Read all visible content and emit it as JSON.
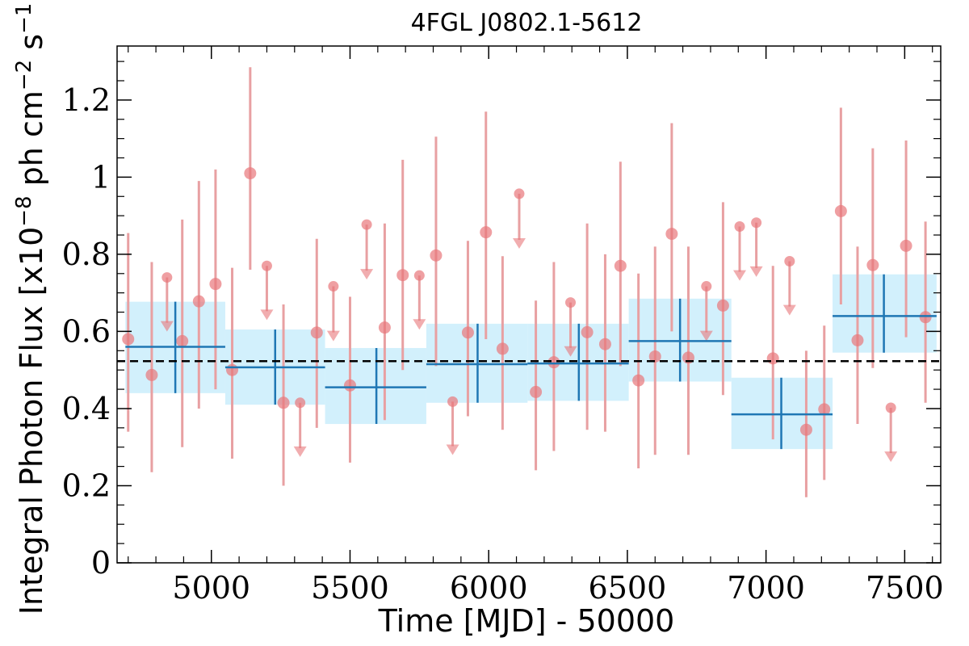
{
  "chart_data": {
    "type": "scatter",
    "title": "4FGL J0802.1-5612",
    "xlabel": "Time [MJD] - 50000",
    "ylabel_main": "Integral Photon Flux [x10",
    "ylabel_exp1": "−8",
    "ylabel_mid": " ph cm",
    "ylabel_exp2": "−2",
    "ylabel_s": " s",
    "ylabel_exp3": "−1",
    "ylabel_end": "]",
    "xlim": [
      4660,
      7630
    ],
    "ylim": [
      0,
      1.34
    ],
    "x_ticks": [
      5000,
      5500,
      6000,
      6500,
      7000,
      7500
    ],
    "y_ticks": [
      0,
      0.2,
      0.4,
      0.6,
      0.8,
      1,
      1.2
    ],
    "y_tick_labels": [
      "0",
      "0.2",
      "0.4",
      "0.6",
      "0.8",
      "1",
      "1.2"
    ],
    "mean_flux": 0.523,
    "colors": {
      "points": "#e8767a",
      "errorbars": "#e8a0a2",
      "bins": "#1f77b4",
      "bin_band": "#cdeefc",
      "mean_line": "#000000"
    },
    "series": [
      {
        "kind": "detections",
        "points": [
          {
            "x": 4700,
            "y": 0.58,
            "ylow": 0.34,
            "yhigh": 0.855
          },
          {
            "x": 4785,
            "y": 0.487,
            "ylow": 0.235,
            "yhigh": 0.78
          },
          {
            "x": 4895,
            "y": 0.575,
            "ylow": 0.3,
            "yhigh": 0.89
          },
          {
            "x": 4955,
            "y": 0.678,
            "ylow": 0.4,
            "yhigh": 0.99
          },
          {
            "x": 5015,
            "y": 0.723,
            "ylow": 0.45,
            "yhigh": 1.02
          },
          {
            "x": 5140,
            "y": 1.01,
            "ylow": 0.76,
            "yhigh": 1.285
          },
          {
            "x": 5075,
            "y": 0.5,
            "ylow": 0.27,
            "yhigh": 0.765
          },
          {
            "x": 5260,
            "y": 0.415,
            "ylow": 0.2,
            "yhigh": 0.67
          },
          {
            "x": 5380,
            "y": 0.597,
            "ylow": 0.35,
            "yhigh": 0.84
          },
          {
            "x": 5500,
            "y": 0.46,
            "ylow": 0.26,
            "yhigh": 0.69
          },
          {
            "x": 5625,
            "y": 0.61,
            "ylow": 0.37,
            "yhigh": 0.88
          },
          {
            "x": 5690,
            "y": 0.746,
            "ylow": 0.5,
            "yhigh": 1.045
          },
          {
            "x": 5810,
            "y": 0.797,
            "ylow": 0.51,
            "yhigh": 1.105
          },
          {
            "x": 5925,
            "y": 0.597,
            "ylow": 0.38,
            "yhigh": 0.835
          },
          {
            "x": 5990,
            "y": 0.857,
            "ylow": 0.58,
            "yhigh": 1.17
          },
          {
            "x": 6050,
            "y": 0.555,
            "ylow": 0.345,
            "yhigh": 0.795
          },
          {
            "x": 6170,
            "y": 0.443,
            "ylow": 0.24,
            "yhigh": 0.68
          },
          {
            "x": 6235,
            "y": 0.52,
            "ylow": 0.29,
            "yhigh": 0.78
          },
          {
            "x": 6355,
            "y": 0.598,
            "ylow": 0.345,
            "yhigh": 0.88
          },
          {
            "x": 6420,
            "y": 0.567,
            "ylow": 0.34,
            "yhigh": 0.8
          },
          {
            "x": 6475,
            "y": 0.77,
            "ylow": 0.51,
            "yhigh": 1.04
          },
          {
            "x": 6540,
            "y": 0.473,
            "ylow": 0.245,
            "yhigh": 0.75
          },
          {
            "x": 6600,
            "y": 0.535,
            "ylow": 0.28,
            "yhigh": 0.82
          },
          {
            "x": 6660,
            "y": 0.853,
            "ylow": 0.6,
            "yhigh": 1.14
          },
          {
            "x": 6720,
            "y": 0.532,
            "ylow": 0.28,
            "yhigh": 0.82
          },
          {
            "x": 6845,
            "y": 0.667,
            "ylow": 0.435,
            "yhigh": 0.935
          },
          {
            "x": 7025,
            "y": 0.53,
            "ylow": 0.32,
            "yhigh": 0.77
          },
          {
            "x": 7145,
            "y": 0.345,
            "ylow": 0.17,
            "yhigh": 0.55
          },
          {
            "x": 7210,
            "y": 0.398,
            "ylow": 0.215,
            "yhigh": 0.615
          },
          {
            "x": 7270,
            "y": 0.912,
            "ylow": 0.67,
            "yhigh": 1.18
          },
          {
            "x": 7330,
            "y": 0.577,
            "ylow": 0.36,
            "yhigh": 0.82
          },
          {
            "x": 7385,
            "y": 0.772,
            "ylow": 0.505,
            "yhigh": 1.075
          },
          {
            "x": 7505,
            "y": 0.822,
            "ylow": 0.585,
            "yhigh": 1.095
          },
          {
            "x": 7575,
            "y": 0.637,
            "ylow": 0.415,
            "yhigh": 0.885
          }
        ]
      },
      {
        "kind": "upper_limits",
        "points": [
          {
            "x": 4840,
            "y": 0.74,
            "arrow_to": 0.61
          },
          {
            "x": 5200,
            "y": 0.77,
            "arrow_to": 0.64
          },
          {
            "x": 5320,
            "y": 0.415,
            "arrow_to": 0.285
          },
          {
            "x": 5440,
            "y": 0.717,
            "arrow_to": 0.585
          },
          {
            "x": 5560,
            "y": 0.877,
            "arrow_to": 0.745
          },
          {
            "x": 5750,
            "y": 0.745,
            "arrow_to": 0.615
          },
          {
            "x": 5870,
            "y": 0.418,
            "arrow_to": 0.29
          },
          {
            "x": 6110,
            "y": 0.957,
            "arrow_to": 0.825
          },
          {
            "x": 6295,
            "y": 0.675,
            "arrow_to": 0.545
          },
          {
            "x": 6785,
            "y": 0.717,
            "arrow_to": 0.585
          },
          {
            "x": 6905,
            "y": 0.872,
            "arrow_to": 0.742
          },
          {
            "x": 6965,
            "y": 0.882,
            "arrow_to": 0.752
          },
          {
            "x": 7085,
            "y": 0.782,
            "arrow_to": 0.652
          },
          {
            "x": 7450,
            "y": 0.402,
            "arrow_to": 0.272
          }
        ]
      },
      {
        "kind": "binned",
        "bins": [
          {
            "x0": 4690,
            "x1": 5050,
            "xc": 4870,
            "y": 0.56,
            "ylow": 0.44,
            "yhigh": 0.677
          },
          {
            "x0": 5050,
            "x1": 5410,
            "xc": 5230,
            "y": 0.507,
            "ylow": 0.41,
            "yhigh": 0.605
          },
          {
            "x0": 5410,
            "x1": 5775,
            "xc": 5595,
            "y": 0.455,
            "ylow": 0.36,
            "yhigh": 0.557
          },
          {
            "x0": 5775,
            "x1": 6140,
            "xc": 5960,
            "y": 0.515,
            "ylow": 0.415,
            "yhigh": 0.62
          },
          {
            "x0": 6140,
            "x1": 6505,
            "xc": 6325,
            "y": 0.517,
            "ylow": 0.42,
            "yhigh": 0.62
          },
          {
            "x0": 6505,
            "x1": 6875,
            "xc": 6690,
            "y": 0.575,
            "ylow": 0.47,
            "yhigh": 0.685
          },
          {
            "x0": 6875,
            "x1": 7240,
            "xc": 7055,
            "y": 0.385,
            "ylow": 0.295,
            "yhigh": 0.48
          },
          {
            "x0": 7240,
            "x1": 7615,
            "xc": 7425,
            "y": 0.64,
            "ylow": 0.545,
            "yhigh": 0.748
          }
        ]
      }
    ]
  }
}
